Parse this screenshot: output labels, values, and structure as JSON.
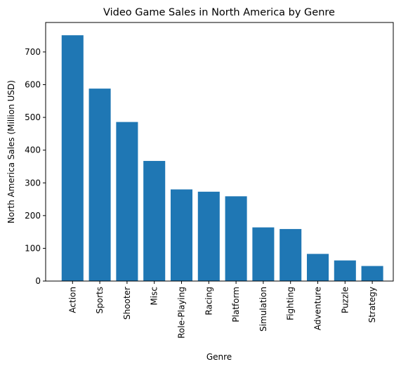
{
  "chart_data": {
    "type": "bar",
    "title": "Video Game Sales in North America by Genre",
    "xlabel": "Genre",
    "ylabel": "North America Sales (Million USD)",
    "categories": [
      "Action",
      "Sports",
      "Shooter",
      "Misc",
      "Role-Playing",
      "Racing",
      "Platform",
      "Simulation",
      "Fighting",
      "Adventure",
      "Puzzle",
      "Strategy"
    ],
    "values": [
      751,
      588,
      486,
      367,
      280,
      273,
      259,
      164,
      159,
      83,
      63,
      46
    ],
    "ylim": [
      0,
      790
    ],
    "yticks": [
      0,
      100,
      200,
      300,
      400,
      500,
      600,
      700
    ],
    "grid": false,
    "legend": "none",
    "bar_color": "#1f77b4"
  }
}
